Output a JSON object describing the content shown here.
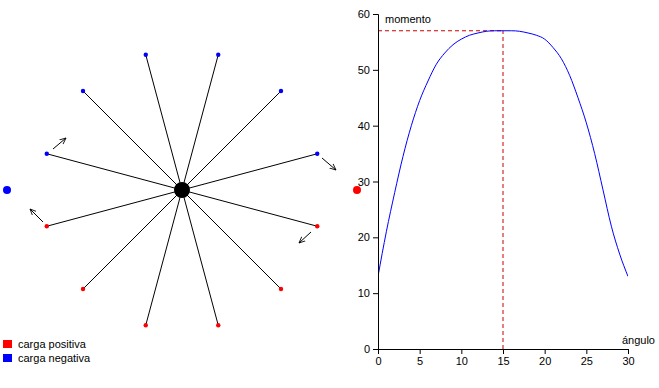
{
  "chart_data": {
    "type": "line",
    "x_label": "ángulo",
    "y_label": "momento",
    "color": "#0000ff",
    "x": [
      0,
      1,
      2,
      3,
      4,
      5,
      6,
      7,
      8,
      9,
      10,
      11,
      12,
      13,
      14,
      15,
      16,
      17,
      18,
      19,
      20,
      21,
      22,
      23,
      24,
      25,
      26,
      27,
      28,
      29,
      30
    ],
    "values": [
      13,
      21,
      28,
      34.5,
      40,
      44.5,
      48,
      51,
      53,
      54.5,
      55.5,
      56.2,
      56.6,
      56.9,
      57,
      57,
      57,
      56.9,
      56.6,
      56.2,
      55.5,
      54,
      52,
      49,
      45,
      40.5,
      35,
      28.5,
      22,
      17,
      13
    ],
    "xlim": [
      0,
      30
    ],
    "ylim": [
      0,
      60
    ],
    "xticks": [
      0,
      5,
      10,
      15,
      20,
      25,
      30
    ],
    "yticks": [
      0,
      10,
      20,
      30,
      40,
      50,
      60
    ],
    "reference_lines": {
      "x": 15,
      "y": 57,
      "color": "#cc0000",
      "line_style": "dashed"
    }
  },
  "diagram": {
    "legend": [
      {
        "label": "carga positiva",
        "color": "#ff0000"
      },
      {
        "label": "carga negativa",
        "color": "#0000ff"
      }
    ]
  }
}
